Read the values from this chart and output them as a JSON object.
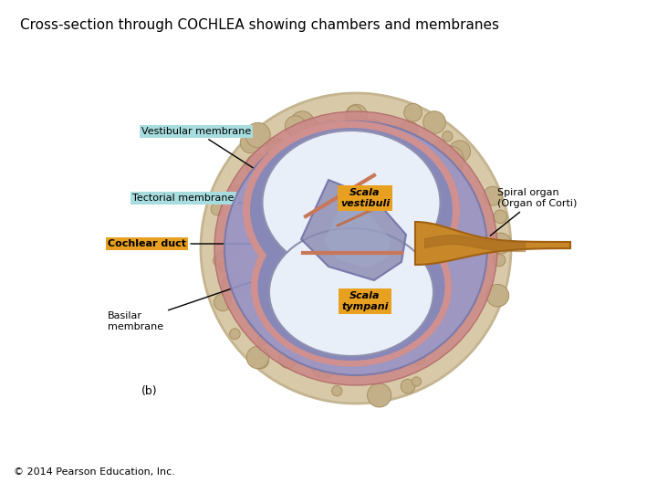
{
  "title": "Cross-section through COCHLEA showing chambers and membranes",
  "title_fontsize": 11,
  "title_fontweight": "normal",
  "copyright": "© 2014 Pearson Education, Inc.",
  "copyright_fontsize": 8,
  "label_b": "(b)",
  "bg_color": "#ffffff",
  "fig_width": 7.2,
  "fig_height": 5.4,
  "outer_circle_color": "#d8c9a8",
  "outer_circle_edge": "#c4b490",
  "scala_vestibuli_label": "Scala\nvestibuli",
  "scala_vestibuli_bg": "#e8a020",
  "scala_vestibuli_fontsize": 8,
  "scala_tympani_label": "Scala\ntympani",
  "scala_tympani_bg": "#e8a020",
  "scala_tympani_fontsize": 8,
  "spiral_organ_label": "Spiral organ\n(Organ of Corti)",
  "vestibular_membrane_label": "Vestibular membrane",
  "vestibular_membrane_bg": "#a8dde0",
  "tectorial_membrane_label": "Tectorial membrane",
  "tectorial_membrane_bg": "#a8dde0",
  "cochlear_duct_label": "Cochlear duct",
  "cochlear_duct_bg": "#e8a020",
  "basilar_membrane_label": "Basilar\nmembrane",
  "label_fontsize": 8,
  "label_color": "#000000",
  "annotation_linewidth": 1.0,
  "annotation_color": "#000000"
}
